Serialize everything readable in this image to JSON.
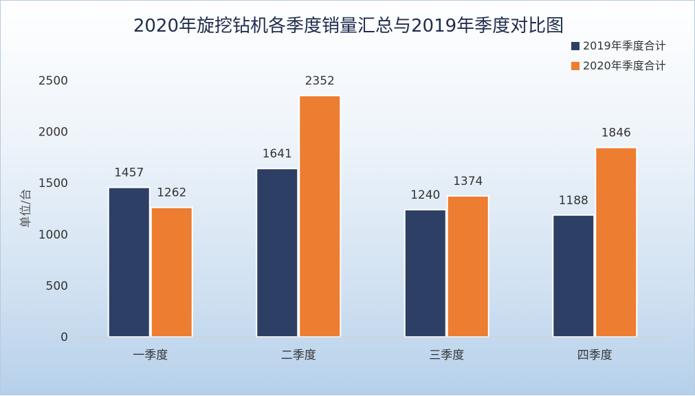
{
  "chart_data": {
    "type": "bar",
    "title": "2020年旋挖钻机各季度销量汇总与2019年季度对比图",
    "ylabel": "单位/台",
    "xlabel": "",
    "categories": [
      "一季度",
      "二季度",
      "三季度",
      "四季度"
    ],
    "series": [
      {
        "name": "2019年季度合计",
        "values": [
          1457,
          1641,
          1240,
          1188
        ],
        "color": "#2e3f66"
      },
      {
        "name": "2020年季度合计",
        "values": [
          1262,
          2352,
          1374,
          1846
        ],
        "color": "#ed7d31"
      }
    ],
    "ylim": [
      0,
      2500
    ],
    "yticks": [
      0,
      500,
      1000,
      1500,
      2000,
      2500
    ],
    "grid": false,
    "legend": "top-right",
    "data_labels": true
  }
}
